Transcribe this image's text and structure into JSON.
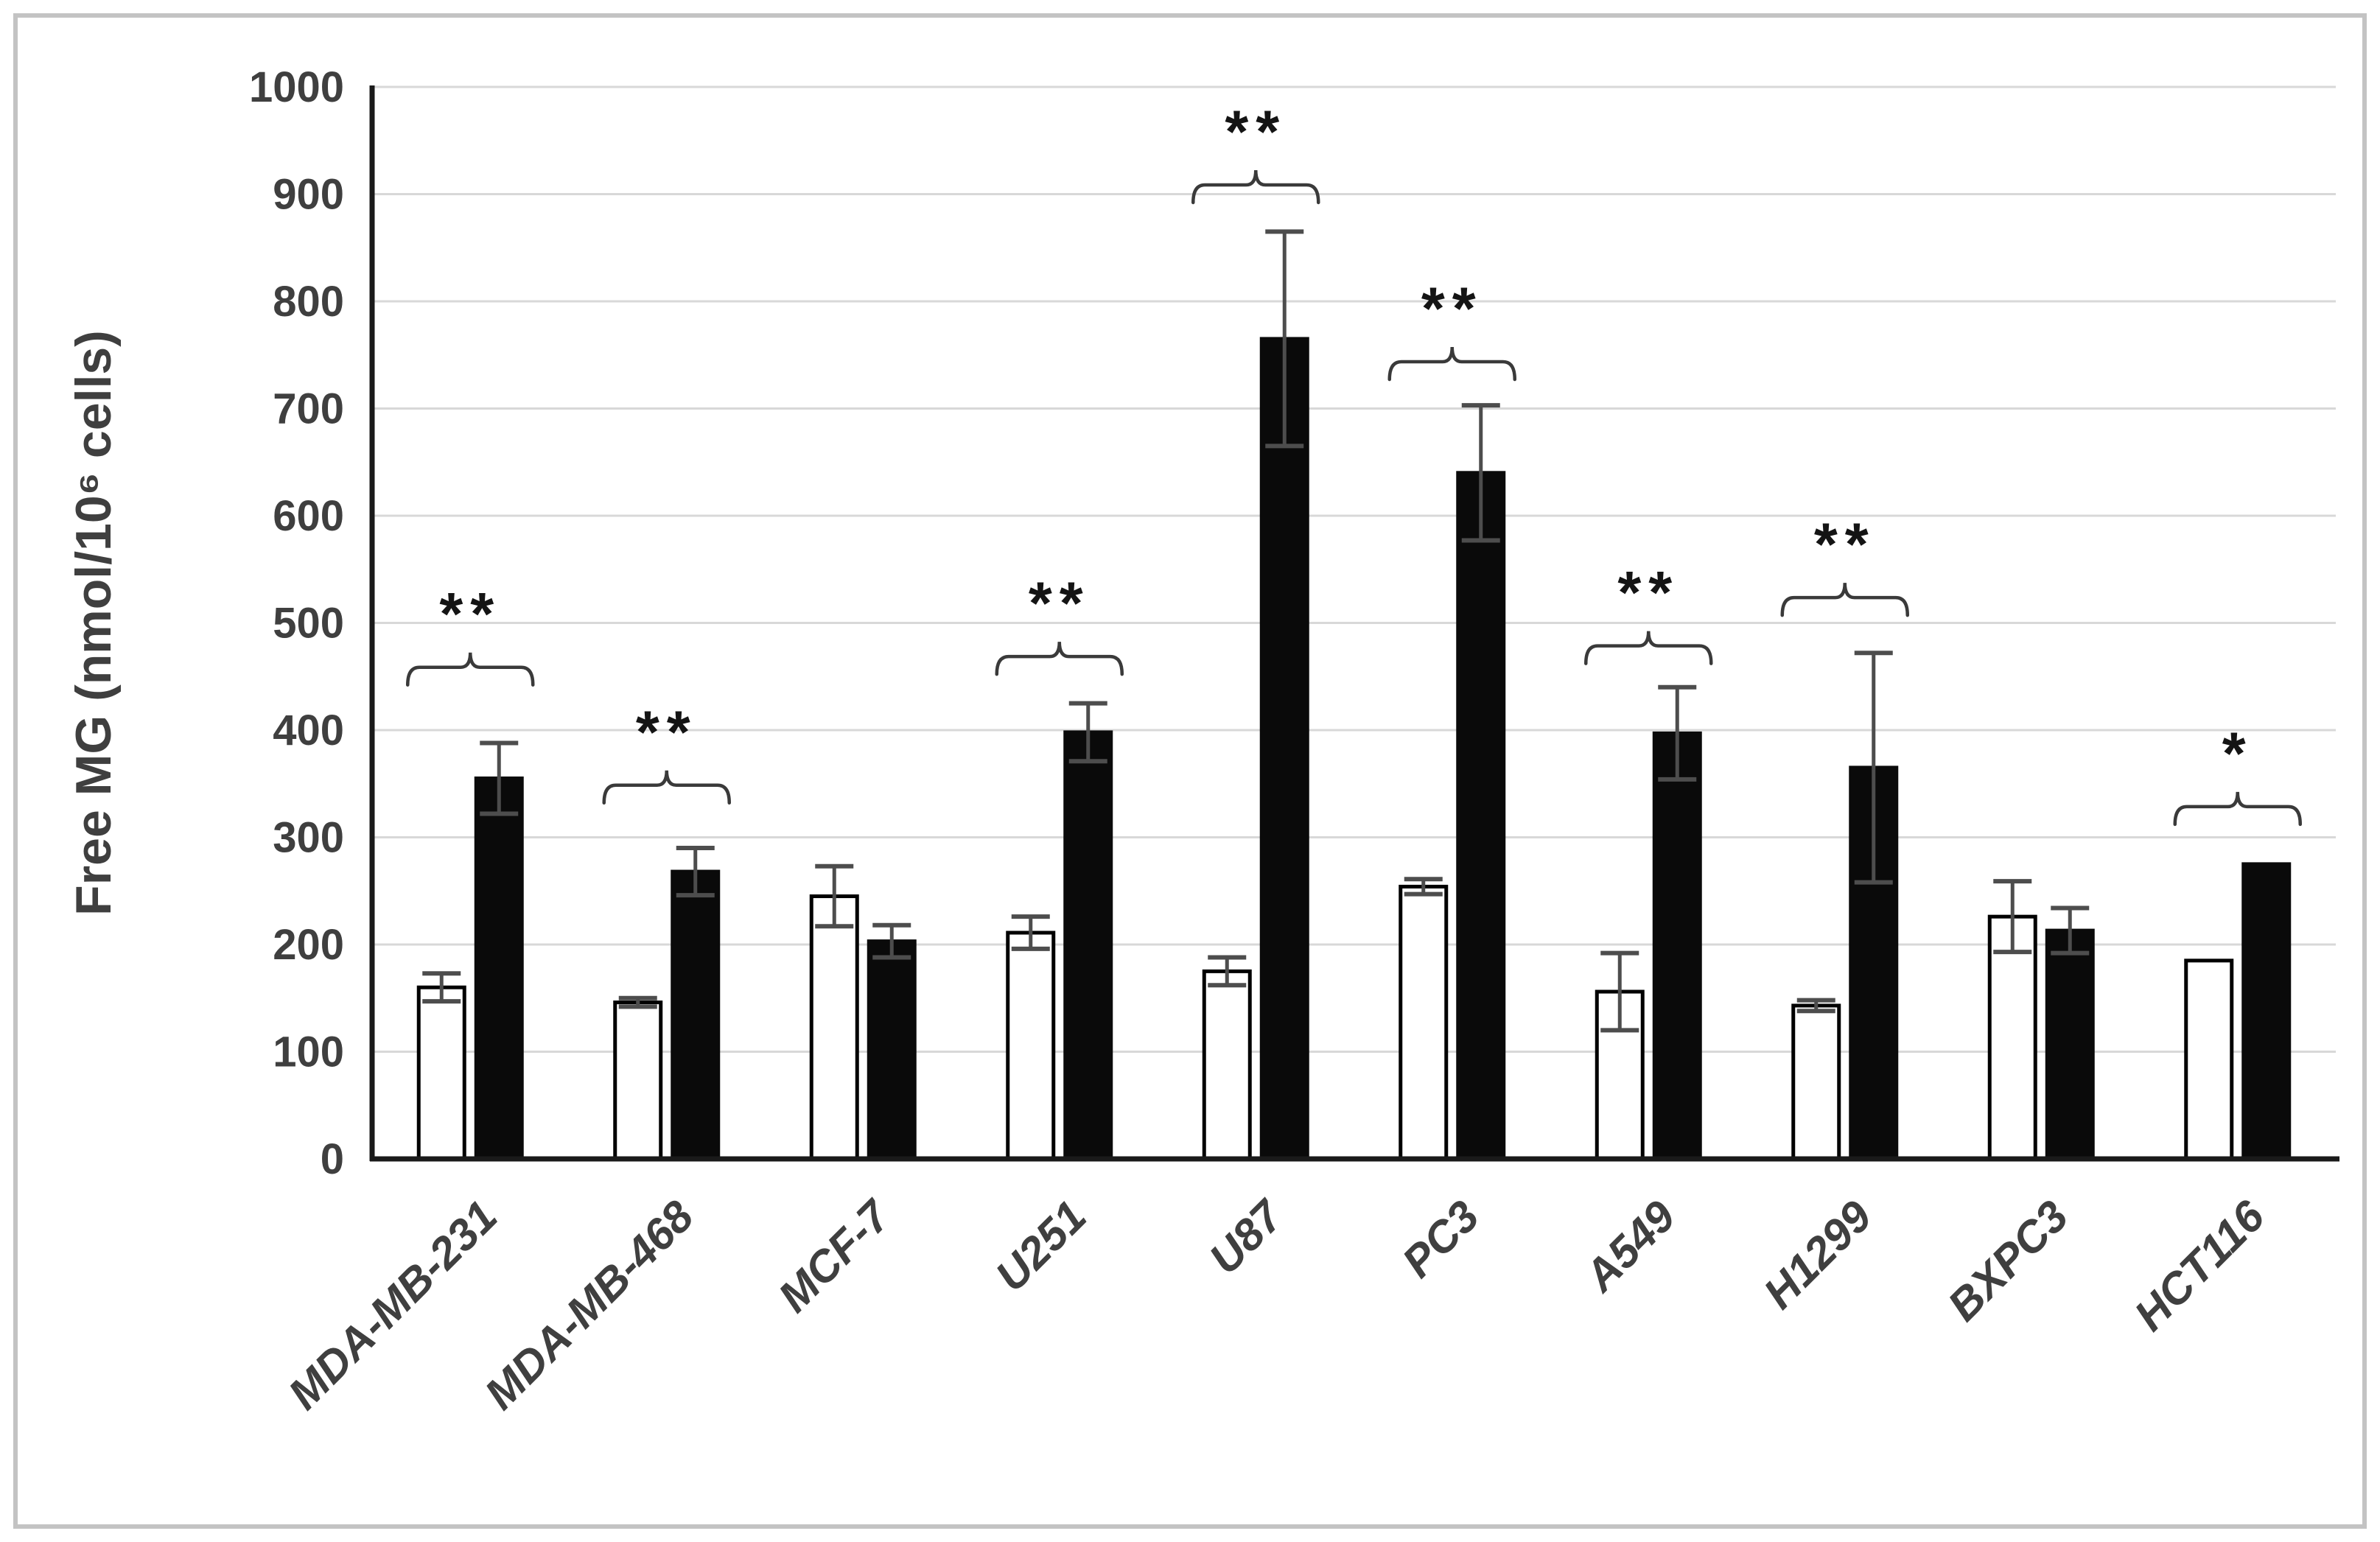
{
  "figure": {
    "background": "#ffffff",
    "frame_color": "#c3c3c3"
  },
  "chart_data": {
    "type": "bar",
    "title": "",
    "xlabel": "",
    "ylabel": "Free MG (nmol/10⁶ cells)",
    "ylim": [
      0,
      1000
    ],
    "ytick_step": 100,
    "grid": true,
    "legend_position": "none",
    "categories": [
      "MDA-MB-231",
      "MDA-MB-468",
      "MCF-7",
      "U251",
      "U87",
      "PC3",
      "A549",
      "H1299",
      "BXPC3",
      "HCT116"
    ],
    "series": [
      {
        "name": "open-bars",
        "fill": "#ffffff",
        "stroke": "#000000",
        "values": [
          160,
          146,
          245,
          211,
          175,
          254,
          156,
          143,
          226,
          185
        ],
        "errors": [
          13,
          4,
          28,
          15,
          13,
          7,
          36,
          5,
          33,
          0
        ]
      },
      {
        "name": "solid-bars",
        "fill": "#0a0a0a",
        "stroke": "#0a0a0a",
        "values": [
          355,
          268,
          203,
          398,
          765,
          640,
          397,
          365,
          213,
          275
        ],
        "errors": [
          33,
          22,
          15,
          27,
          100,
          63,
          43,
          107,
          21,
          0
        ]
      }
    ],
    "significance": {
      "labels": [
        "**",
        "**",
        "",
        "**",
        "**",
        "**",
        "**",
        "**",
        "",
        "*"
      ],
      "bracket_y": [
        460,
        350,
        null,
        470,
        910,
        745,
        480,
        525,
        null,
        330
      ]
    },
    "ytick_labels": [
      "0",
      "100",
      "200",
      "300",
      "400",
      "500",
      "600",
      "700",
      "800",
      "900",
      "1000"
    ]
  },
  "colors": {
    "axis": "#1a1a1a",
    "gridline": "#d8d8d8",
    "error_bar": "#4d4d4d",
    "bracket": "#3a3a3a",
    "asterisk": "#141414",
    "tick_text": "#3f3f3f"
  }
}
